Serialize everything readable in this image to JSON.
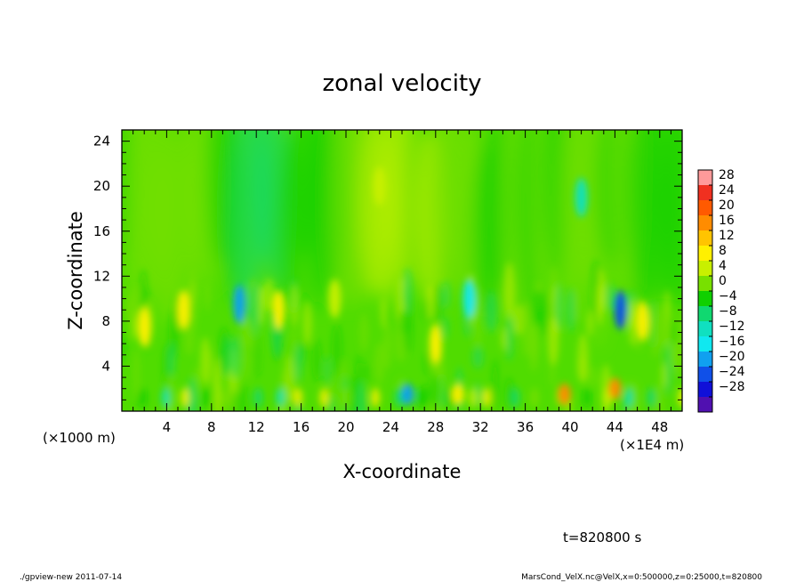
{
  "chart_data": {
    "type": "heatmap",
    "title": "zonal velocity",
    "xlabel": "X-coordinate",
    "ylabel": "Z-coordinate",
    "x_unit_label": "(×1E4 m)",
    "y_unit_label": "(×1000 m)",
    "xlim": [
      0,
      50
    ],
    "ylim": [
      0,
      25
    ],
    "xticks": [
      "4",
      "8",
      "12",
      "16",
      "20",
      "24",
      "28",
      "32",
      "36",
      "40",
      "44",
      "48"
    ],
    "yticks": [
      "4",
      "8",
      "12",
      "16",
      "20",
      "24"
    ],
    "colorbar": {
      "labels": [
        "28",
        "24",
        "20",
        "16",
        "12",
        "8",
        "4",
        "0",
        "−4",
        "−8",
        "−12",
        "−16",
        "−20",
        "−24",
        "−28"
      ],
      "colors": [
        "#ff9a9a",
        "#f03020",
        "#ff5a00",
        "#ff8c00",
        "#ffc400",
        "#fff000",
        "#c8f000",
        "#78e000",
        "#10d000",
        "#10d870",
        "#10e0c0",
        "#10e8f0",
        "#10a0f0",
        "#1050e8",
        "#1010d8",
        "#5010b0"
      ]
    },
    "features": [
      {
        "x": 2,
        "z": 7.5,
        "value": 10
      },
      {
        "x": 5.5,
        "z": 9,
        "value": 11
      },
      {
        "x": 10.5,
        "z": 9.5,
        "value": -17
      },
      {
        "x": 14,
        "z": 9,
        "value": 10
      },
      {
        "x": 19,
        "z": 10,
        "value": 8
      },
      {
        "x": 25.5,
        "z": 1.5,
        "value": -19
      },
      {
        "x": 28,
        "z": 6,
        "value": 10
      },
      {
        "x": 30,
        "z": 1.5,
        "value": 12
      },
      {
        "x": 31,
        "z": 10,
        "value": -12
      },
      {
        "x": 39.5,
        "z": 1.5,
        "value": 20
      },
      {
        "x": 44,
        "z": 2,
        "value": 18
      },
      {
        "x": 44.5,
        "z": 9,
        "value": -21
      },
      {
        "x": 46.5,
        "z": 8,
        "value": 9
      },
      {
        "x": 23,
        "z": 20,
        "value": 7
      },
      {
        "x": 41,
        "z": 19,
        "value": -9
      }
    ]
  },
  "footer": {
    "time_label": "t=820800 s",
    "program": "./gpview-new  2011-07-14",
    "source": "MarsCond_VelX.nc@VelX,x=0:500000,z=0:25000,t=820800"
  }
}
